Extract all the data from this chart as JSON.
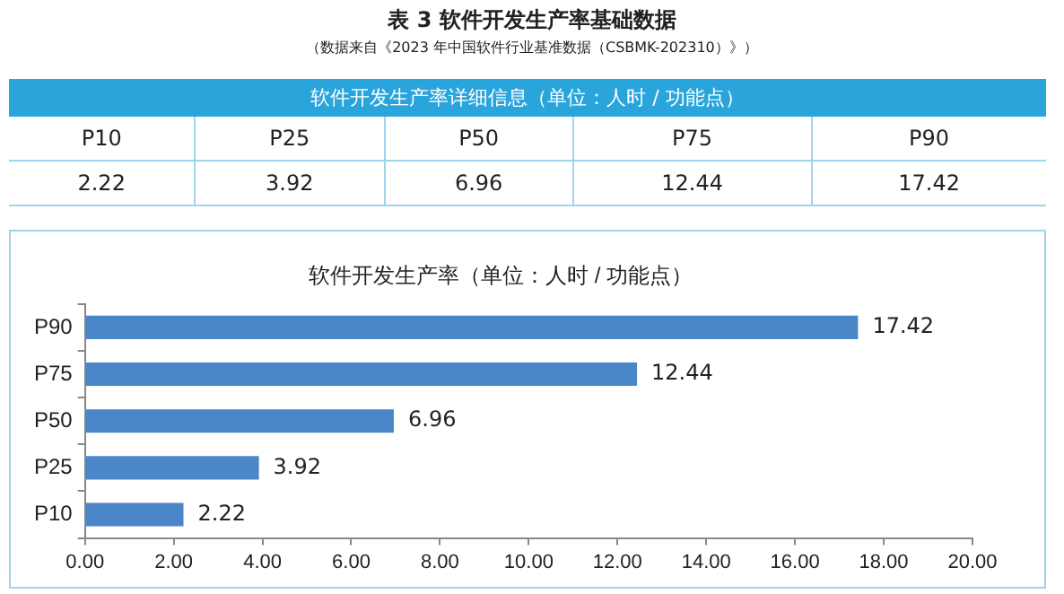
{
  "chart_data": {
    "type": "bar",
    "orientation": "horizontal",
    "title": "软件开发生产率（单位：人时 / 功能点）",
    "annotations": [
      "表 3  软件开发生产率基础数据",
      "（数据来自《2023 年中国软件行业基准数据（CSBMK-202310）》）",
      "软件开发生产率详细信息（单位：人时 / 功能点）",
      "2.22",
      "3.92",
      "6.96",
      "12.44",
      "17.42"
    ],
    "categories": [
      "P90",
      "P75",
      "P50",
      "P25",
      "P10"
    ],
    "values": [
      17.42,
      12.44,
      6.96,
      3.92,
      2.22
    ],
    "color": "#4a86c8",
    "xlim": [
      0,
      20
    ],
    "xticks": [
      {
        "value": 0,
        "label": "0.00"
      },
      {
        "value": 2,
        "label": "2.00"
      },
      {
        "value": 4,
        "label": "4.00"
      },
      {
        "value": 6,
        "label": "6.00"
      },
      {
        "value": 8,
        "label": "8.00"
      },
      {
        "value": 10,
        "label": "10.00"
      },
      {
        "value": 12,
        "label": "12.00"
      },
      {
        "value": 14,
        "label": "14.00"
      },
      {
        "value": 16,
        "label": "16.00"
      },
      {
        "value": 18,
        "label": "18.00"
      },
      {
        "value": 20,
        "label": "20.00"
      }
    ],
    "data_labels": true,
    "grid": false,
    "legend": false
  }
}
